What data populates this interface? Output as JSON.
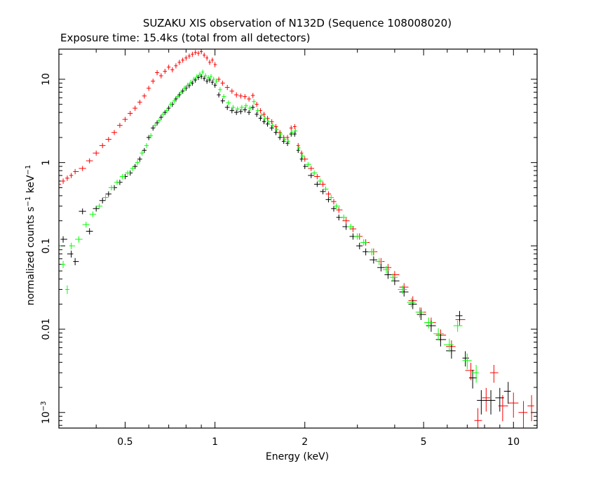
{
  "chart_data": {
    "type": "scatter",
    "title": "SUZAKU XIS observation of N132D (Sequence 108008020)",
    "subtitle": "Exposure time: 15.4ks (total from all detectors)",
    "xlabel": "Energy (keV)",
    "ylabel": {
      "base": "normalized counts s",
      "exp1": "−1",
      "middle": " keV",
      "exp2": "−1"
    },
    "x_scale": "log",
    "y_scale": "log",
    "xlim": [
      0.3,
      12
    ],
    "ylim": [
      0.00065,
      23
    ],
    "x_ticks": [
      {
        "value": 0.5,
        "label": "0.5"
      },
      {
        "value": 1,
        "label": "1"
      },
      {
        "value": 2,
        "label": "2"
      },
      {
        "value": 5,
        "label": "5"
      },
      {
        "value": 10,
        "label": "10"
      }
    ],
    "y_ticks": [
      {
        "value": 0.001,
        "label": "10",
        "exp": "−3"
      },
      {
        "value": 0.01,
        "label": "0.01"
      },
      {
        "value": 0.1,
        "label": "0.1"
      },
      {
        "value": 1,
        "label": "1"
      },
      {
        "value": 10,
        "label": "10"
      }
    ],
    "grid": false,
    "series": [
      {
        "color": "#ff0000",
        "points": [
          [
            0.3,
            0.55
          ],
          [
            0.31,
            0.6
          ],
          [
            0.32,
            0.65
          ],
          [
            0.33,
            0.7
          ],
          [
            0.34,
            0.78
          ],
          [
            0.36,
            0.85
          ],
          [
            0.38,
            1.05
          ],
          [
            0.4,
            1.3
          ],
          [
            0.42,
            1.6
          ],
          [
            0.44,
            1.9
          ],
          [
            0.46,
            2.3
          ],
          [
            0.48,
            2.8
          ],
          [
            0.5,
            3.3
          ],
          [
            0.52,
            3.9
          ],
          [
            0.54,
            4.5
          ],
          [
            0.56,
            5.3
          ],
          [
            0.58,
            6.3
          ],
          [
            0.6,
            7.8
          ],
          [
            0.62,
            9.5
          ],
          [
            0.64,
            12
          ],
          [
            0.66,
            11
          ],
          [
            0.68,
            12.5
          ],
          [
            0.7,
            14
          ],
          [
            0.72,
            13
          ],
          [
            0.74,
            14.5
          ],
          [
            0.76,
            16
          ],
          [
            0.78,
            17
          ],
          [
            0.8,
            18
          ],
          [
            0.82,
            19
          ],
          [
            0.84,
            20
          ],
          [
            0.86,
            21
          ],
          [
            0.88,
            20.5
          ],
          [
            0.9,
            21.5
          ],
          [
            0.92,
            19.5
          ],
          [
            0.94,
            18
          ],
          [
            0.96,
            16
          ],
          [
            0.98,
            17
          ],
          [
            1.0,
            15
          ],
          [
            1.03,
            10
          ],
          [
            1.06,
            9
          ],
          [
            1.1,
            8
          ],
          [
            1.14,
            7.2
          ],
          [
            1.18,
            6.5
          ],
          [
            1.22,
            6.3
          ],
          [
            1.26,
            6.2
          ],
          [
            1.3,
            5.8
          ],
          [
            1.34,
            6.4
          ],
          [
            1.38,
            5
          ],
          [
            1.42,
            4.2
          ],
          [
            1.46,
            3.8
          ],
          [
            1.5,
            3.4
          ],
          [
            1.55,
            3.1
          ],
          [
            1.6,
            2.7
          ],
          [
            1.65,
            2.3
          ],
          [
            1.7,
            2.0
          ],
          [
            1.75,
            2.0
          ],
          [
            1.8,
            2.6
          ],
          [
            1.85,
            2.7
          ],
          [
            1.9,
            1.6
          ],
          [
            1.95,
            1.3
          ],
          [
            2.0,
            1.1
          ],
          [
            2.1,
            0.85
          ],
          [
            2.2,
            0.68
          ],
          [
            2.3,
            0.55
          ],
          [
            2.4,
            0.42
          ],
          [
            2.5,
            0.34
          ],
          [
            2.6,
            0.27
          ],
          [
            2.75,
            0.2
          ],
          [
            2.9,
            0.16
          ],
          [
            3.05,
            0.13
          ],
          [
            3.2,
            0.11
          ],
          [
            3.4,
            0.085
          ],
          [
            3.6,
            0.065
          ],
          [
            3.8,
            0.055
          ],
          [
            4.0,
            0.045
          ],
          [
            4.3,
            0.032
          ],
          [
            4.6,
            0.022
          ],
          [
            4.9,
            0.016
          ],
          [
            5.3,
            0.012
          ],
          [
            5.7,
            0.0085
          ],
          [
            6.2,
            0.0062
          ],
          [
            6.6,
            0.013
          ],
          [
            7.2,
            0.0032
          ],
          [
            7.6,
            0.0008
          ],
          [
            8.1,
            0.0015
          ],
          [
            8.6,
            0.003
          ],
          [
            9.2,
            0.0012
          ],
          [
            10.0,
            0.0013
          ],
          [
            10.8,
            0.001
          ],
          [
            11.5,
            0.0012
          ]
        ]
      },
      {
        "color": "#000000",
        "points": [
          [
            0.31,
            0.12
          ],
          [
            0.33,
            0.08
          ],
          [
            0.34,
            0.065
          ],
          [
            0.36,
            0.26
          ],
          [
            0.38,
            0.15
          ],
          [
            0.4,
            0.28
          ],
          [
            0.42,
            0.35
          ],
          [
            0.44,
            0.42
          ],
          [
            0.46,
            0.5
          ],
          [
            0.48,
            0.58
          ],
          [
            0.5,
            0.68
          ],
          [
            0.52,
            0.75
          ],
          [
            0.54,
            0.9
          ],
          [
            0.56,
            1.1
          ],
          [
            0.58,
            1.4
          ],
          [
            0.6,
            2.0
          ],
          [
            0.62,
            2.6
          ],
          [
            0.64,
            3.0
          ],
          [
            0.66,
            3.5
          ],
          [
            0.68,
            4.0
          ],
          [
            0.7,
            4.5
          ],
          [
            0.72,
            5.0
          ],
          [
            0.74,
            5.8
          ],
          [
            0.76,
            6.5
          ],
          [
            0.78,
            7.2
          ],
          [
            0.8,
            7.8
          ],
          [
            0.82,
            8.4
          ],
          [
            0.84,
            9.0
          ],
          [
            0.86,
            9.8
          ],
          [
            0.88,
            10.5
          ],
          [
            0.9,
            10.8
          ],
          [
            0.92,
            10.2
          ],
          [
            0.94,
            9.5
          ],
          [
            0.96,
            9.8
          ],
          [
            0.98,
            9.2
          ],
          [
            1.0,
            8.5
          ],
          [
            1.03,
            6.5
          ],
          [
            1.06,
            5.5
          ],
          [
            1.1,
            4.6
          ],
          [
            1.14,
            4.2
          ],
          [
            1.18,
            4.0
          ],
          [
            1.22,
            4.1
          ],
          [
            1.26,
            4.3
          ],
          [
            1.3,
            4.0
          ],
          [
            1.34,
            4.6
          ],
          [
            1.38,
            3.8
          ],
          [
            1.42,
            3.4
          ],
          [
            1.46,
            3.1
          ],
          [
            1.5,
            2.9
          ],
          [
            1.55,
            2.6
          ],
          [
            1.6,
            2.3
          ],
          [
            1.65,
            2.0
          ],
          [
            1.7,
            1.8
          ],
          [
            1.75,
            1.7
          ],
          [
            1.8,
            2.2
          ],
          [
            1.85,
            2.2
          ],
          [
            1.9,
            1.4
          ],
          [
            1.95,
            1.1
          ],
          [
            2.0,
            0.9
          ],
          [
            2.1,
            0.7
          ],
          [
            2.2,
            0.55
          ],
          [
            2.3,
            0.45
          ],
          [
            2.4,
            0.36
          ],
          [
            2.5,
            0.28
          ],
          [
            2.6,
            0.22
          ],
          [
            2.75,
            0.17
          ],
          [
            2.9,
            0.13
          ],
          [
            3.05,
            0.1
          ],
          [
            3.2,
            0.085
          ],
          [
            3.4,
            0.068
          ],
          [
            3.6,
            0.055
          ],
          [
            3.8,
            0.045
          ],
          [
            4.0,
            0.038
          ],
          [
            4.3,
            0.028
          ],
          [
            4.6,
            0.02
          ],
          [
            4.9,
            0.015
          ],
          [
            5.3,
            0.011
          ],
          [
            5.7,
            0.0075
          ],
          [
            6.2,
            0.0055
          ],
          [
            6.6,
            0.0145
          ],
          [
            6.9,
            0.0045
          ],
          [
            7.3,
            0.0026
          ],
          [
            7.8,
            0.0014
          ],
          [
            8.4,
            0.0014
          ],
          [
            9.0,
            0.0015
          ],
          [
            9.6,
            0.0018
          ]
        ]
      },
      {
        "color": "#00ff00",
        "points": [
          [
            0.3,
            0.1
          ],
          [
            0.31,
            0.06
          ],
          [
            0.32,
            0.03
          ],
          [
            0.33,
            0.1
          ],
          [
            0.35,
            0.12
          ],
          [
            0.37,
            0.18
          ],
          [
            0.39,
            0.24
          ],
          [
            0.41,
            0.3
          ],
          [
            0.43,
            0.38
          ],
          [
            0.45,
            0.5
          ],
          [
            0.47,
            0.58
          ],
          [
            0.49,
            0.68
          ],
          [
            0.51,
            0.75
          ],
          [
            0.53,
            0.85
          ],
          [
            0.55,
            1.0
          ],
          [
            0.57,
            1.3
          ],
          [
            0.59,
            1.6
          ],
          [
            0.61,
            2.1
          ],
          [
            0.63,
            2.8
          ],
          [
            0.65,
            3.2
          ],
          [
            0.67,
            3.8
          ],
          [
            0.69,
            4.2
          ],
          [
            0.71,
            5.0
          ],
          [
            0.73,
            5.5
          ],
          [
            0.75,
            6.2
          ],
          [
            0.77,
            7.0
          ],
          [
            0.79,
            7.8
          ],
          [
            0.81,
            8.5
          ],
          [
            0.83,
            9.2
          ],
          [
            0.85,
            10.0
          ],
          [
            0.87,
            10.8
          ],
          [
            0.89,
            11.5
          ],
          [
            0.91,
            12.2
          ],
          [
            0.93,
            11.0
          ],
          [
            0.95,
            10.5
          ],
          [
            0.97,
            10.8
          ],
          [
            0.99,
            10.0
          ],
          [
            1.01,
            9.5
          ],
          [
            1.04,
            7.5
          ],
          [
            1.07,
            6.2
          ],
          [
            1.11,
            5.2
          ],
          [
            1.15,
            4.6
          ],
          [
            1.19,
            4.4
          ],
          [
            1.23,
            4.6
          ],
          [
            1.27,
            4.8
          ],
          [
            1.31,
            4.5
          ],
          [
            1.35,
            5.4
          ],
          [
            1.39,
            4.2
          ],
          [
            1.43,
            3.7
          ],
          [
            1.47,
            3.4
          ],
          [
            1.51,
            3.1
          ],
          [
            1.56,
            2.8
          ],
          [
            1.61,
            2.5
          ],
          [
            1.66,
            2.2
          ],
          [
            1.71,
            1.9
          ],
          [
            1.76,
            1.8
          ],
          [
            1.81,
            2.3
          ],
          [
            1.86,
            2.4
          ],
          [
            1.91,
            1.5
          ],
          [
            1.96,
            1.2
          ],
          [
            2.05,
            0.95
          ],
          [
            2.15,
            0.75
          ],
          [
            2.25,
            0.6
          ],
          [
            2.35,
            0.48
          ],
          [
            2.45,
            0.38
          ],
          [
            2.55,
            0.3
          ],
          [
            2.7,
            0.22
          ],
          [
            2.85,
            0.17
          ],
          [
            3.0,
            0.13
          ],
          [
            3.15,
            0.11
          ],
          [
            3.35,
            0.085
          ],
          [
            3.55,
            0.065
          ],
          [
            3.75,
            0.052
          ],
          [
            3.95,
            0.042
          ],
          [
            4.25,
            0.03
          ],
          [
            4.55,
            0.021
          ],
          [
            4.85,
            0.016
          ],
          [
            5.2,
            0.012
          ],
          [
            5.6,
            0.0088
          ],
          [
            6.1,
            0.0065
          ],
          [
            6.5,
            0.011
          ],
          [
            7.0,
            0.0042
          ],
          [
            7.5,
            0.003
          ]
        ]
      }
    ]
  }
}
